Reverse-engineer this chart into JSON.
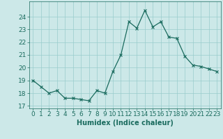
{
  "x": [
    0,
    1,
    2,
    3,
    4,
    5,
    6,
    7,
    8,
    9,
    10,
    11,
    12,
    13,
    14,
    15,
    16,
    17,
    18,
    19,
    20,
    21,
    22,
    23
  ],
  "y": [
    19.0,
    18.5,
    18.0,
    18.2,
    17.6,
    17.6,
    17.5,
    17.4,
    18.2,
    18.0,
    19.7,
    21.0,
    23.6,
    23.1,
    24.5,
    23.2,
    23.6,
    22.4,
    22.3,
    20.9,
    20.2,
    20.1,
    19.9,
    19.7
  ],
  "xlabel": "Humidex (Indice chaleur)",
  "ylabel": "",
  "xlim": [
    -0.5,
    23.5
  ],
  "ylim": [
    16.8,
    25.2
  ],
  "yticks": [
    17,
    18,
    19,
    20,
    21,
    22,
    23,
    24
  ],
  "xticks": [
    0,
    1,
    2,
    3,
    4,
    5,
    6,
    7,
    8,
    9,
    10,
    11,
    12,
    13,
    14,
    15,
    16,
    17,
    18,
    19,
    20,
    21,
    22,
    23
  ],
  "line_color": "#1a6b5e",
  "marker": "x",
  "bg_color": "#cce8e8",
  "grid_color": "#99cccc",
  "label_fontsize": 7,
  "tick_fontsize": 6.5
}
